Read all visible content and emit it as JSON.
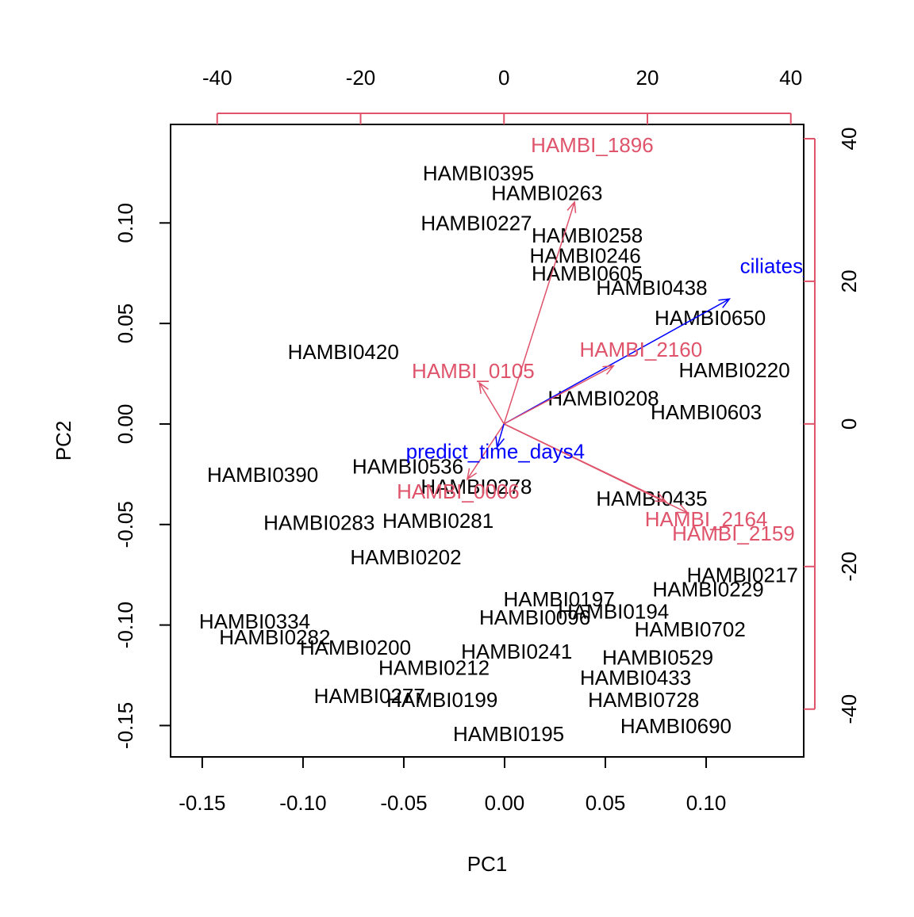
{
  "chart_data": {
    "type": "biplot",
    "xlabel": "PC1",
    "ylabel": "PC2",
    "xlim": [
      -0.1657,
      0.1484
    ],
    "ylim": [
      -0.1656,
      0.149
    ],
    "xticks": [
      -0.15,
      {
        "value": -0.1,
        "label": "-0.10"
      },
      -0.05,
      {
        "value": 0,
        "label": "0.00"
      },
      0.05,
      {
        "value": 0.1,
        "label": "0.10"
      }
    ],
    "yticks": [
      -0.15,
      {
        "value": -0.1,
        "label": "-0.10"
      },
      -0.05,
      {
        "value": 0,
        "label": "0.00"
      },
      0.05,
      {
        "value": 0.1,
        "label": "0.10"
      }
    ],
    "x2lim": [
      -46.5,
      41.8
    ],
    "y2lim": [
      -46.7,
      42
    ],
    "x2ticks": [
      -40,
      -20,
      0,
      20,
      40
    ],
    "y2ticks": [
      -40,
      -20,
      0,
      20,
      40
    ],
    "observations": {
      "color": "#000000",
      "labels": [
        "HAMBI0395",
        "HAMBI0258",
        "HAMBI0246",
        "HAMBI0438",
        "HAMBI0420",
        "HAMBI0536",
        "HAMBI0435",
        "HAMBI0281",
        "HAMBI0283",
        "HAMBI0202",
        "HAMBI0229",
        "HAMBI0194",
        "HAMBI0702",
        "HAMBI0334",
        "HAMBI0282",
        "HAMBI0200",
        "HAMBI0529",
        "HAMBI0212",
        "HAMBI0433",
        "HAMBI0277",
        "HAMBI0199",
        "HAMBI0728",
        "HAMBI0690",
        "HAMBI0195",
        "HAMBI0603",
        "HAMBI0263",
        "HAMBI0227",
        "HAMBI0605",
        "HAMBI0650",
        "HAMBI0220",
        "HAMBI0208",
        "HAMBI0390",
        "HAMBI0278",
        "HAMBI0197",
        "HAMBI0217",
        "HAMBI0241",
        "HAMBI0096"
      ],
      "x": [
        -0.013,
        0.041,
        0.04,
        0.073,
        -0.08,
        -0.048,
        0.073,
        -0.033,
        -0.092,
        -0.049,
        0.101,
        0.054,
        0.092,
        -0.124,
        -0.114,
        -0.074,
        0.076,
        -0.035,
        0.065,
        -0.067,
        -0.031,
        0.069,
        0.085,
        0.002,
        0.1,
        0.021,
        -0.014,
        0.041,
        0.102,
        0.114,
        0.049,
        -0.12,
        -0.014,
        0.027,
        0.118,
        0.006,
        0.015
      ],
      "y": [
        0.124,
        0.093,
        0.083,
        0.067,
        0.035,
        -0.022,
        -0.038,
        -0.049,
        -0.05,
        -0.067,
        -0.083,
        -0.094,
        -0.103,
        -0.099,
        -0.107,
        -0.112,
        -0.117,
        -0.122,
        -0.127,
        -0.136,
        -0.138,
        -0.138,
        -0.151,
        -0.155,
        0.005,
        0.114,
        0.099,
        0.074,
        0.052,
        0.026,
        0.012,
        -0.026,
        -0.032,
        -0.088,
        -0.076,
        -0.114,
        -0.097
      ]
    },
    "loadings": {
      "labels": [
        "HAMBI_1896",
        "ciliates_m",
        "HAMBI_2160",
        "HAMBI_0105",
        "HAMBI_0006",
        "HAMBI_2164",
        "HAMBI_2159",
        "predict_time_days4"
      ],
      "x": [
        12.3,
        39.3,
        19.1,
        -4.3,
        -6.4,
        28.2,
        32.0,
        -1.2
      ],
      "y": [
        38.9,
        21.9,
        10.2,
        7.2,
        -9.7,
        -13.6,
        -15.6,
        -4.1
      ],
      "colors": [
        "#DF536B",
        "#0000FF",
        "#DF536B",
        "#DF536B",
        "#DF536B",
        "#DF536B",
        "#DF536B",
        "#0000FF"
      ]
    }
  }
}
